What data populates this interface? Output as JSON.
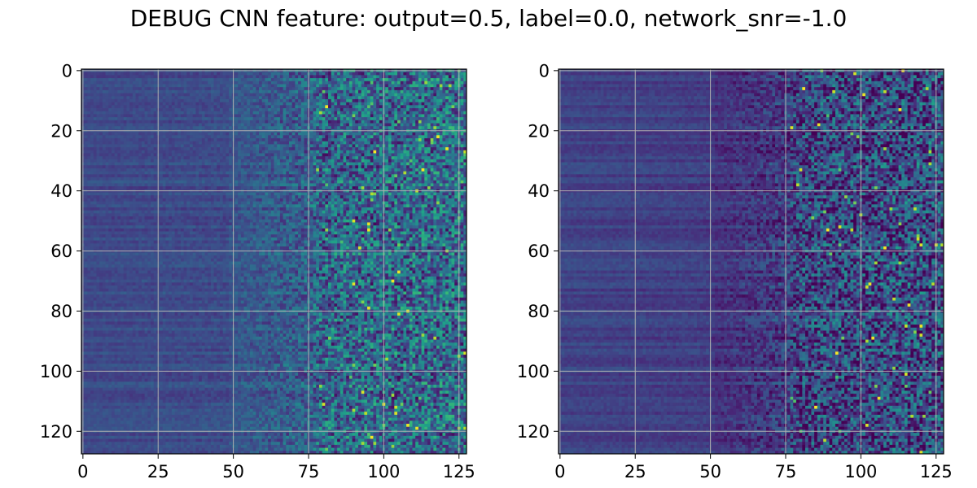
{
  "title": "DEBUG CNN feature: output=0.5, label=0.0, network_snr=-1.0",
  "chart_data": [
    {
      "type": "heatmap",
      "rows": 128,
      "cols": 128,
      "xlim": [
        0,
        127
      ],
      "ylim": [
        127,
        0
      ],
      "xticks": [
        0,
        25,
        50,
        75,
        100,
        125
      ],
      "yticks": [
        0,
        20,
        40,
        60,
        80,
        100,
        120
      ],
      "xtick_labels": [
        "0",
        "25",
        "50",
        "75",
        "100",
        "125"
      ],
      "ytick_labels": [
        "0",
        "20",
        "40",
        "60",
        "80",
        "100",
        "120"
      ],
      "grid": true,
      "colormap": "viridis",
      "column_profile": [
        {
          "x": 0,
          "level": 0.22
        },
        {
          "x": 48,
          "level": 0.23
        },
        {
          "x": 50,
          "level": 0.27
        },
        {
          "x": 75,
          "level": 0.3
        },
        {
          "x": 77,
          "level": 0.33
        },
        {
          "x": 127,
          "level": 0.36
        }
      ],
      "noise_profile": [
        {
          "x": 0,
          "amount": 0.03
        },
        {
          "x": 48,
          "amount": 0.05
        },
        {
          "x": 75,
          "amount": 0.18
        },
        {
          "x": 80,
          "amount": 0.28
        },
        {
          "x": 127,
          "amount": 0.3
        }
      ]
    },
    {
      "type": "heatmap",
      "rows": 128,
      "cols": 128,
      "xlim": [
        0,
        127
      ],
      "ylim": [
        127,
        0
      ],
      "xticks": [
        0,
        25,
        50,
        75,
        100,
        125
      ],
      "yticks": [
        0,
        20,
        40,
        60,
        80,
        100,
        120
      ],
      "xtick_labels": [
        "0",
        "25",
        "50",
        "75",
        "100",
        "125"
      ],
      "ytick_labels": [
        "0",
        "20",
        "40",
        "60",
        "80",
        "100",
        "120"
      ],
      "grid": true,
      "colormap": "viridis",
      "column_profile": [
        {
          "x": 0,
          "level": 0.2
        },
        {
          "x": 50,
          "level": 0.18
        },
        {
          "x": 52,
          "level": 0.14
        },
        {
          "x": 75,
          "level": 0.17
        },
        {
          "x": 77,
          "level": 0.21
        },
        {
          "x": 127,
          "level": 0.24
        }
      ],
      "noise_profile": [
        {
          "x": 0,
          "amount": 0.03
        },
        {
          "x": 50,
          "amount": 0.04
        },
        {
          "x": 75,
          "amount": 0.16
        },
        {
          "x": 80,
          "amount": 0.27
        },
        {
          "x": 127,
          "amount": 0.3
        }
      ]
    }
  ]
}
